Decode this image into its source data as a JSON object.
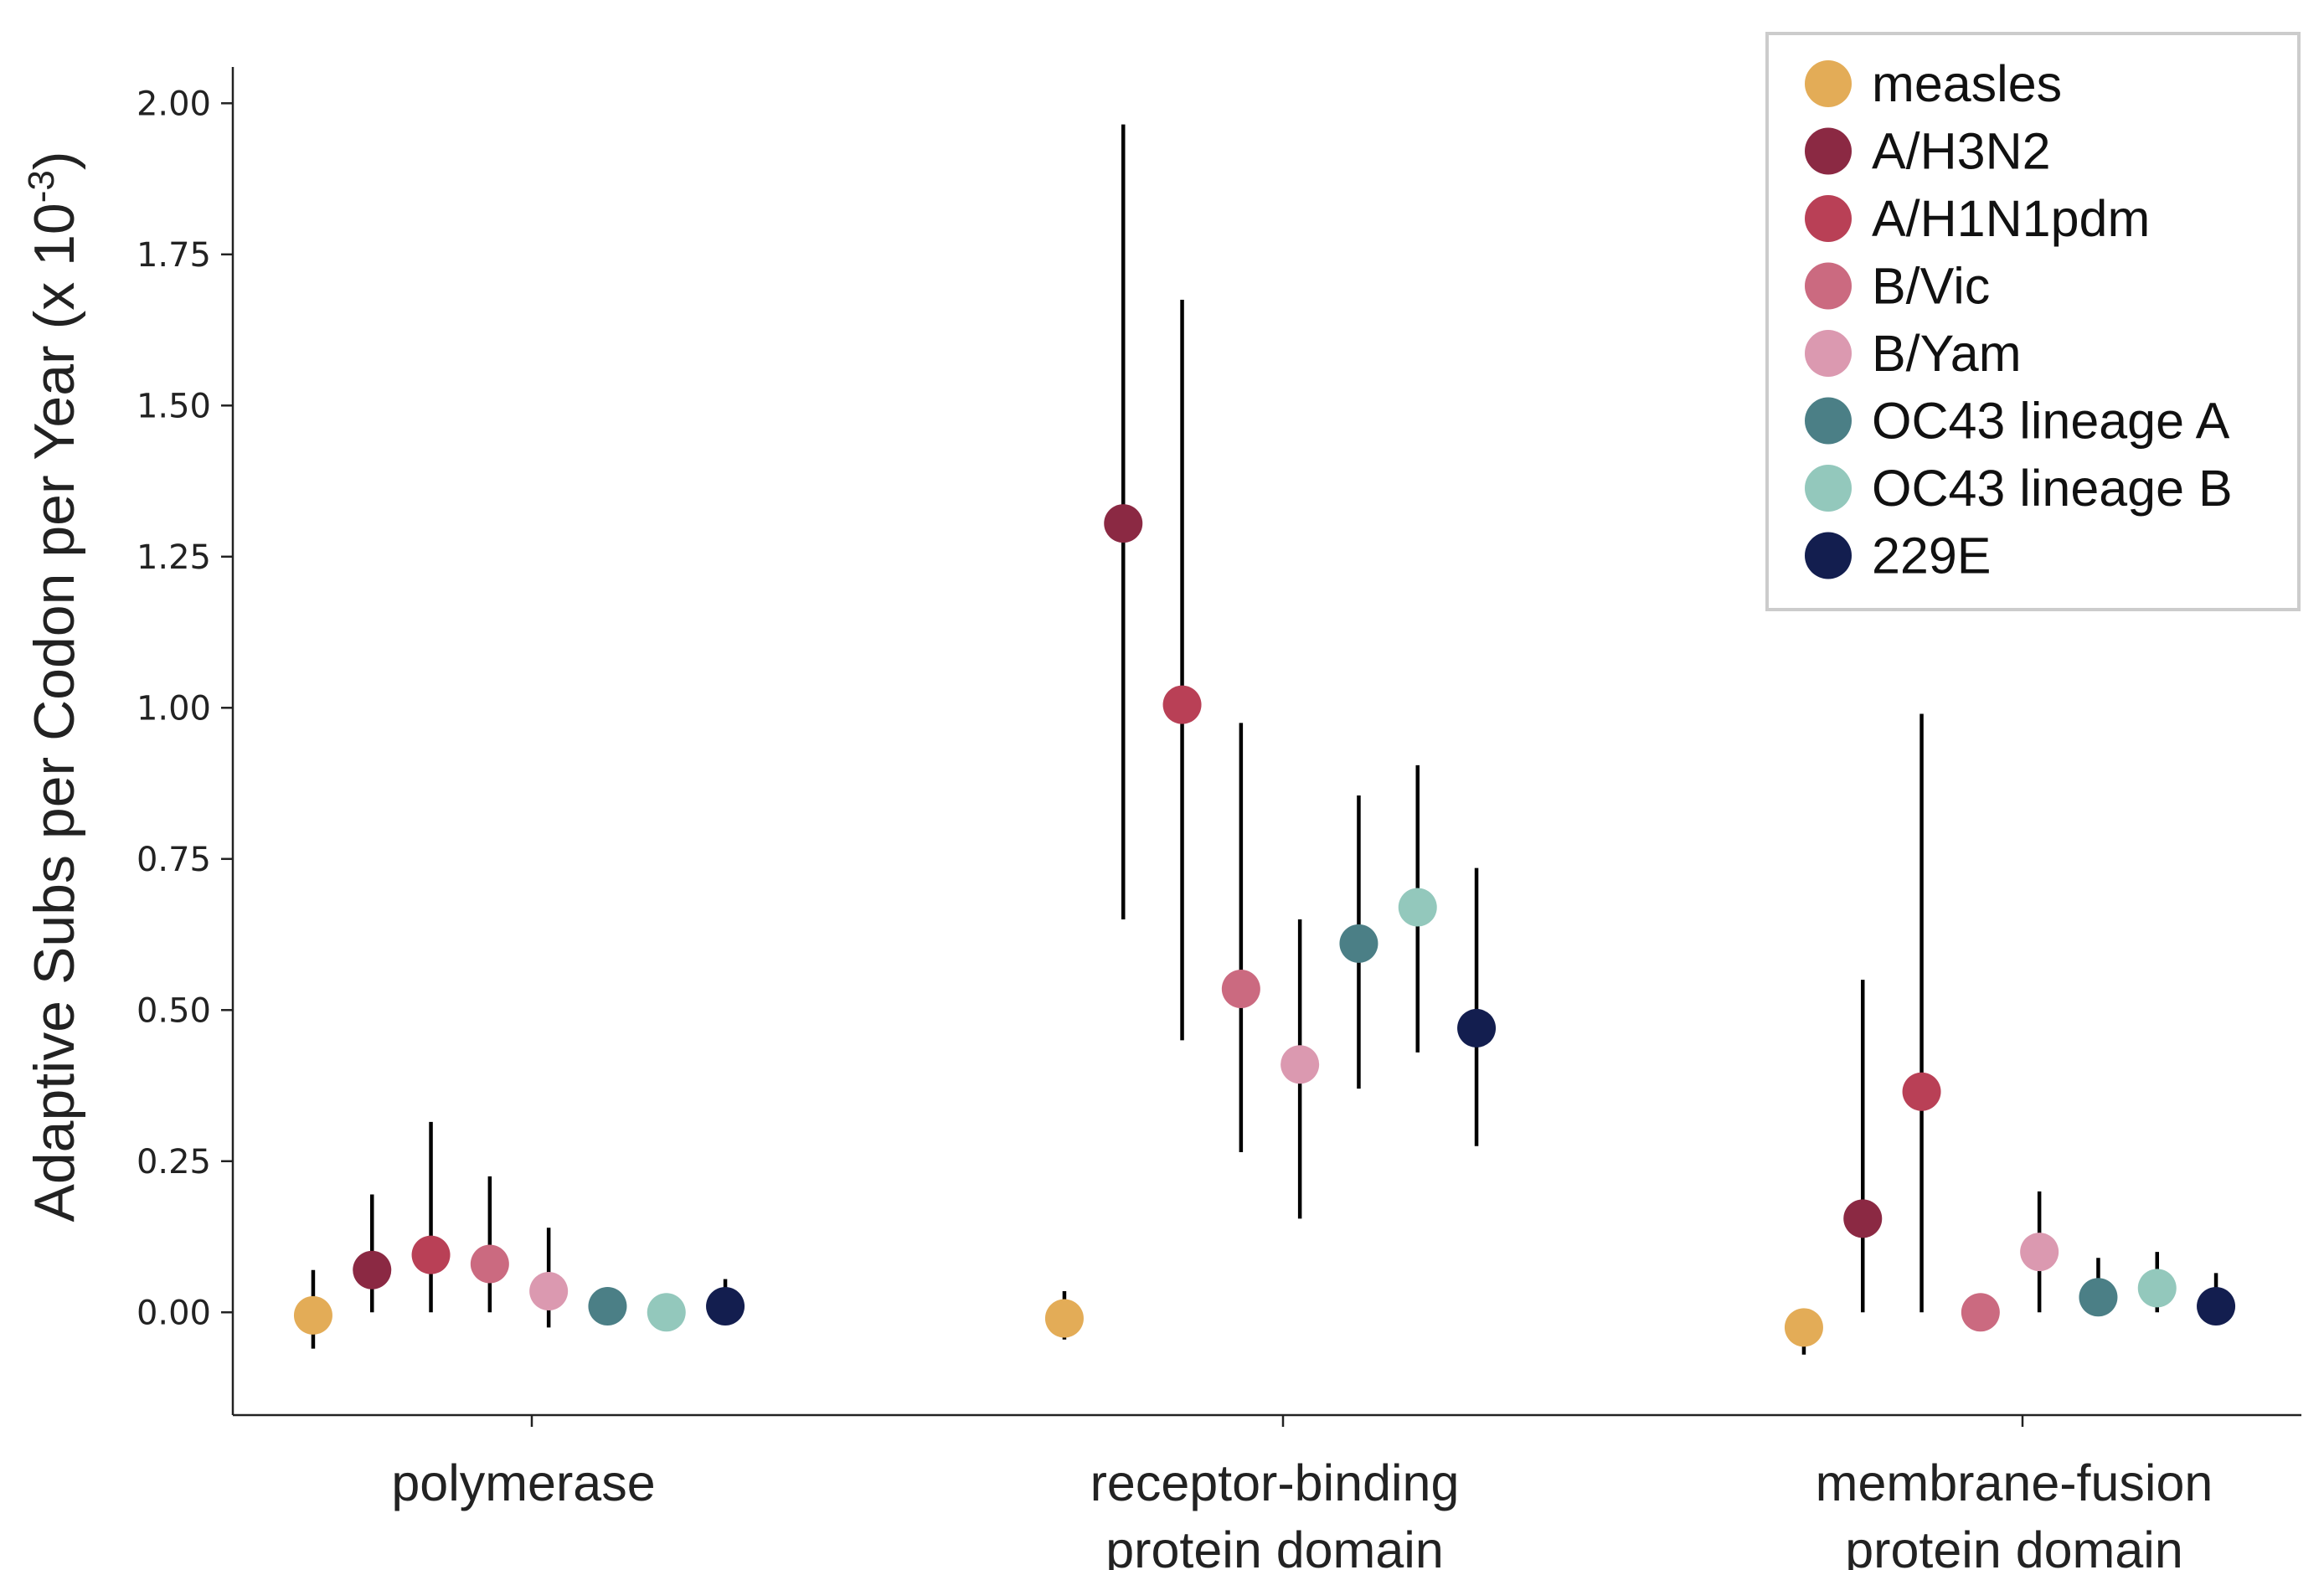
{
  "chart_data": {
    "type": "scatter",
    "title": "",
    "xlabel": "",
    "ylabel": "Adaptive Subs per Codon per Year (x 10-3)",
    "ylabel_parts": {
      "main": "Adaptive Subs per Codon per Year (x 10",
      "sup": "-3",
      "end": ")"
    },
    "ylim": [
      -0.17,
      2.06
    ],
    "yticks": [
      0.0,
      0.25,
      0.5,
      0.75,
      1.0,
      1.25,
      1.5,
      1.75,
      2.0
    ],
    "ytick_labels": [
      "0.00",
      "0.25",
      "0.50",
      "0.75",
      "1.00",
      "1.25",
      "1.50",
      "1.75",
      "2.00"
    ],
    "categories": [
      {
        "lines": [
          "polymerase"
        ]
      },
      {
        "lines": [
          "receptor-binding",
          "protein domain"
        ]
      },
      {
        "lines": [
          "membrane-fusion",
          "protein domain"
        ]
      }
    ],
    "legend_position": "top-right",
    "grid": false,
    "series": [
      {
        "name": "measles",
        "color": "#E3AC57",
        "values": [
          -0.005,
          -0.01,
          -0.025
        ],
        "lower": [
          -0.06,
          -0.045,
          -0.07
        ],
        "upper": [
          0.07,
          0.035,
          0.0
        ]
      },
      {
        "name": "A/H3N2",
        "color": "#8B2943",
        "values": [
          0.07,
          1.305,
          0.155
        ],
        "lower": [
          0.0,
          0.65,
          0.0
        ],
        "upper": [
          0.195,
          1.965,
          0.55
        ]
      },
      {
        "name": "A/H1N1pdm",
        "color": "#B94056",
        "values": [
          0.095,
          1.005,
          0.365
        ],
        "lower": [
          0.0,
          0.45,
          0.0
        ],
        "upper": [
          0.315,
          1.675,
          0.99
        ]
      },
      {
        "name": "B/Vic",
        "color": "#CB6A80",
        "values": [
          0.08,
          0.535,
          0.0
        ],
        "lower": [
          0.0,
          0.265,
          null
        ],
        "upper": [
          0.225,
          0.975,
          null
        ]
      },
      {
        "name": "B/Yam",
        "color": "#DB99B0",
        "values": [
          0.035,
          0.41,
          0.1
        ],
        "lower": [
          -0.025,
          0.155,
          0.0
        ],
        "upper": [
          0.14,
          0.65,
          0.2
        ]
      },
      {
        "name": "OC43 lineage A",
        "color": "#4B7F86",
        "values": [
          0.01,
          0.61,
          0.025
        ],
        "lower": [
          null,
          0.37,
          0.0
        ],
        "upper": [
          null,
          0.855,
          0.09
        ]
      },
      {
        "name": "OC43 lineage B",
        "color": "#93C8BC",
        "values": [
          0.0,
          0.67,
          0.04
        ],
        "lower": [
          null,
          0.43,
          0.0
        ],
        "upper": [
          null,
          0.905,
          0.1
        ]
      },
      {
        "name": "229E",
        "color": "#131E4F",
        "values": [
          0.01,
          0.47,
          0.01
        ],
        "lower": [
          0.0,
          0.275,
          0.0
        ],
        "upper": [
          0.055,
          0.735,
          0.065
        ]
      }
    ]
  }
}
